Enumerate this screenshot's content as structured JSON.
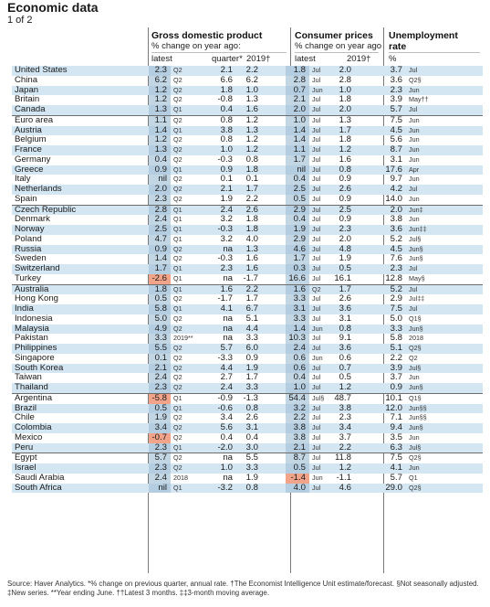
{
  "title": "Economic data",
  "subtitle": "1 of 2",
  "headers": {
    "gdp": {
      "title": "Gross domestic product",
      "sub": "% change on year ago:",
      "latest": "latest",
      "quarter": "quarter*",
      "forecast": "2019†"
    },
    "cpi": {
      "title": "Consumer prices",
      "sub": "% change on year ago",
      "latest": "latest",
      "forecast": "2019†"
    },
    "unemp": {
      "title": "Unemployment",
      "title2": "rate",
      "unit": "%"
    }
  },
  "rows": [
    {
      "country": "United States",
      "gdp": "2.3",
      "gq": "Q2",
      "qtr": "2.1",
      "gf": "2.2",
      "cpi": "1.8",
      "cq": "Jul",
      "cf": "2.0",
      "un": "3.7",
      "uq": "Jul"
    },
    {
      "country": "China",
      "gdp": "6.2",
      "gq": "Q2",
      "qtr": "6.6",
      "gf": "6.2",
      "cpi": "2.8",
      "cq": "Jul",
      "cf": "2.8",
      "un": "3.6",
      "uq": "Q2§"
    },
    {
      "country": "Japan",
      "gdp": "1.2",
      "gq": "Q2",
      "qtr": "1.8",
      "gf": "1.0",
      "cpi": "0.7",
      "cq": "Jun",
      "cf": "1.0",
      "un": "2.3",
      "uq": "Jun"
    },
    {
      "country": "Britain",
      "gdp": "1.2",
      "gq": "Q2",
      "qtr": "-0.8",
      "gf": "1.3",
      "cpi": "2.1",
      "cq": "Jul",
      "cf": "1.8",
      "un": "3.9",
      "uq": "May††"
    },
    {
      "country": "Canada",
      "gdp": "1.3",
      "gq": "Q1",
      "qtr": "0.4",
      "gf": "1.6",
      "cpi": "2.0",
      "cq": "Jul",
      "cf": "2.0",
      "un": "5.7",
      "uq": "Jul"
    },
    {
      "country": "Euro area",
      "gdp": "1.1",
      "gq": "Q2",
      "qtr": "0.8",
      "gf": "1.2",
      "cpi": "1.0",
      "cq": "Jul",
      "cf": "1.3",
      "un": "7.5",
      "uq": "Jun"
    },
    {
      "country": "Austria",
      "gdp": "1.4",
      "gq": "Q1",
      "qtr": "3.8",
      "gf": "1.3",
      "cpi": "1.4",
      "cq": "Jul",
      "cf": "1.7",
      "un": "4.5",
      "uq": "Jun"
    },
    {
      "country": "Belgium",
      "gdp": "1.2",
      "gq": "Q2",
      "qtr": "0.8",
      "gf": "1.2",
      "cpi": "1.4",
      "cq": "Jul",
      "cf": "1.8",
      "un": "5.6",
      "uq": "Jun"
    },
    {
      "country": "France",
      "gdp": "1.3",
      "gq": "Q2",
      "qtr": "1.0",
      "gf": "1.2",
      "cpi": "1.1",
      "cq": "Jul",
      "cf": "1.2",
      "un": "8.7",
      "uq": "Jun"
    },
    {
      "country": "Germany",
      "gdp": "0.4",
      "gq": "Q2",
      "qtr": "-0.3",
      "gf": "0.8",
      "cpi": "1.7",
      "cq": "Jul",
      "cf": "1.6",
      "un": "3.1",
      "uq": "Jun"
    },
    {
      "country": "Greece",
      "gdp": "0.9",
      "gq": "Q1",
      "qtr": "0.9",
      "gf": "1.8",
      "cpi": "nil",
      "cq": "Jul",
      "cf": "0.8",
      "un": "17.6",
      "uq": "Apr"
    },
    {
      "country": "Italy",
      "gdp": "nil",
      "gq": "Q2",
      "qtr": "0.1",
      "gf": "0.1",
      "cpi": "0.4",
      "cq": "Jul",
      "cf": "0.9",
      "un": "9.7",
      "uq": "Jun"
    },
    {
      "country": "Netherlands",
      "gdp": "2.0",
      "gq": "Q2",
      "qtr": "2.1",
      "gf": "1.7",
      "cpi": "2.5",
      "cq": "Jul",
      "cf": "2.6",
      "un": "4.2",
      "uq": "Jul"
    },
    {
      "country": "Spain",
      "gdp": "2.3",
      "gq": "Q2",
      "qtr": "1.9",
      "gf": "2.2",
      "cpi": "0.5",
      "cq": "Jul",
      "cf": "0.9",
      "un": "14.0",
      "uq": "Jun"
    },
    {
      "country": "Czech Republic",
      "gdp": "2.8",
      "gq": "Q1",
      "qtr": "2.4",
      "gf": "2.6",
      "cpi": "2.9",
      "cq": "Jul",
      "cf": "2.5",
      "un": "2.0",
      "uq": "Jun‡"
    },
    {
      "country": "Denmark",
      "gdp": "2.4",
      "gq": "Q1",
      "qtr": "3.2",
      "gf": "1.8",
      "cpi": "0.4",
      "cq": "Jul",
      "cf": "0.9",
      "un": "3.8",
      "uq": "Jun"
    },
    {
      "country": "Norway",
      "gdp": "2.5",
      "gq": "Q1",
      "qtr": "-0.3",
      "gf": "1.8",
      "cpi": "1.9",
      "cq": "Jul",
      "cf": "2.3",
      "un": "3.6",
      "uq": "Jun‡‡"
    },
    {
      "country": "Poland",
      "gdp": "4.7",
      "gq": "Q1",
      "qtr": "3.2",
      "gf": "4.0",
      "cpi": "2.9",
      "cq": "Jul",
      "cf": "2.0",
      "un": "5.2",
      "uq": "Jul§"
    },
    {
      "country": "Russia",
      "gdp": "0.9",
      "gq": "Q2",
      "qtr": "na",
      "gf": "1.3",
      "cpi": "4.6",
      "cq": "Jul",
      "cf": "4.8",
      "un": "4.5",
      "uq": "Jun§"
    },
    {
      "country": "Sweden",
      "gdp": "1.4",
      "gq": "Q2",
      "qtr": "-0.3",
      "gf": "1.6",
      "cpi": "1.7",
      "cq": "Jul",
      "cf": "1.9",
      "un": "7.6",
      "uq": "Jun§"
    },
    {
      "country": "Switzerland",
      "gdp": "1.7",
      "gq": "Q1",
      "qtr": "2.3",
      "gf": "1.6",
      "cpi": "0.3",
      "cq": "Jul",
      "cf": "0.5",
      "un": "2.3",
      "uq": "Jul"
    },
    {
      "country": "Turkey",
      "gdp": "-2.6",
      "gq": "Q1",
      "qtr": "na",
      "gf": "-1.7",
      "cpi": "16.6",
      "cq": "Jul",
      "cf": "16.1",
      "un": "12.8",
      "uq": "May§"
    },
    {
      "country": "Australia",
      "gdp": "1.8",
      "gq": "Q1",
      "qtr": "1.6",
      "gf": "2.2",
      "cpi": "1.6",
      "cq": "Q2",
      "cf": "1.7",
      "un": "5.2",
      "uq": "Jul"
    },
    {
      "country": "Hong Kong",
      "gdp": "0.5",
      "gq": "Q2",
      "qtr": "-1.7",
      "gf": "1.7",
      "cpi": "3.3",
      "cq": "Jul",
      "cf": "2.6",
      "un": "2.9",
      "uq": "Jul‡‡"
    },
    {
      "country": "India",
      "gdp": "5.8",
      "gq": "Q1",
      "qtr": "4.1",
      "gf": "6.7",
      "cpi": "3.1",
      "cq": "Jul",
      "cf": "3.6",
      "un": "7.5",
      "uq": "Jul"
    },
    {
      "country": "Indonesia",
      "gdp": "5.0",
      "gq": "Q2",
      "qtr": "na",
      "gf": "5.1",
      "cpi": "3.3",
      "cq": "Jul",
      "cf": "3.1",
      "un": "5.0",
      "uq": "Q1§"
    },
    {
      "country": "Malaysia",
      "gdp": "4.9",
      "gq": "Q2",
      "qtr": "na",
      "gf": "4.4",
      "cpi": "1.4",
      "cq": "Jun",
      "cf": "0.8",
      "un": "3.3",
      "uq": "Jun§"
    },
    {
      "country": "Pakistan",
      "gdp": "3.3",
      "gq": "2019**",
      "qtr": "na",
      "gf": "3.3",
      "cpi": "10.3",
      "cq": "Jul",
      "cf": "9.1",
      "un": "5.8",
      "uq": "2018"
    },
    {
      "country": "Philippines",
      "gdp": "5.5",
      "gq": "Q2",
      "qtr": "5.7",
      "gf": "6.0",
      "cpi": "2.4",
      "cq": "Jul",
      "cf": "3.6",
      "un": "5.1",
      "uq": "Q2§"
    },
    {
      "country": "Singapore",
      "gdp": "0.1",
      "gq": "Q2",
      "qtr": "-3.3",
      "gf": "0.9",
      "cpi": "0.6",
      "cq": "Jun",
      "cf": "0.6",
      "un": "2.2",
      "uq": "Q2"
    },
    {
      "country": "South Korea",
      "gdp": "2.1",
      "gq": "Q2",
      "qtr": "4.4",
      "gf": "1.9",
      "cpi": "0.6",
      "cq": "Jul",
      "cf": "0.7",
      "un": "3.9",
      "uq": "Jul§"
    },
    {
      "country": "Taiwan",
      "gdp": "2.4",
      "gq": "Q2",
      "qtr": "2.7",
      "gf": "1.7",
      "cpi": "0.4",
      "cq": "Jul",
      "cf": "0.5",
      "un": "3.7",
      "uq": "Jun"
    },
    {
      "country": "Thailand",
      "gdp": "2.3",
      "gq": "Q2",
      "qtr": "2.4",
      "gf": "3.3",
      "cpi": "1.0",
      "cq": "Jul",
      "cf": "1.2",
      "un": "0.9",
      "uq": "Jun§"
    },
    {
      "country": "Argentina",
      "gdp": "-5.8",
      "gq": "Q1",
      "qtr": "-0.9",
      "gf": "-1.3",
      "cpi": "54.4",
      "cq": "Jul§",
      "cf": "48.7",
      "un": "10.1",
      "uq": "Q1§"
    },
    {
      "country": "Brazil",
      "gdp": "0.5",
      "gq": "Q1",
      "qtr": "-0.6",
      "gf": "0.8",
      "cpi": "3.2",
      "cq": "Jul",
      "cf": "3.8",
      "un": "12.0",
      "uq": "Jun§§"
    },
    {
      "country": "Chile",
      "gdp": "1.9",
      "gq": "Q2",
      "qtr": "3.4",
      "gf": "2.6",
      "cpi": "2.2",
      "cq": "Jul",
      "cf": "2.3",
      "un": "7.1",
      "uq": "Jun§§"
    },
    {
      "country": "Colombia",
      "gdp": "3.4",
      "gq": "Q2",
      "qtr": "5.6",
      "gf": "3.1",
      "cpi": "3.8",
      "cq": "Jul",
      "cf": "3.4",
      "un": "9.4",
      "uq": "Jun§"
    },
    {
      "country": "Mexico",
      "gdp": "-0.7",
      "gq": "Q2",
      "qtr": "0.4",
      "gf": "0.4",
      "cpi": "3.8",
      "cq": "Jul",
      "cf": "3.7",
      "un": "3.5",
      "uq": "Jun"
    },
    {
      "country": "Peru",
      "gdp": "2.3",
      "gq": "Q1",
      "qtr": "-2.0",
      "gf": "3.0",
      "cpi": "2.1",
      "cq": "Jul",
      "cf": "2.2",
      "un": "6.3",
      "uq": "Jul§"
    },
    {
      "country": "Egypt",
      "gdp": "5.7",
      "gq": "Q2",
      "qtr": "na",
      "gf": "5.5",
      "cpi": "8.7",
      "cq": "Jul",
      "cf": "11.8",
      "un": "7.5",
      "uq": "Q2§"
    },
    {
      "country": "Israel",
      "gdp": "2.3",
      "gq": "Q2",
      "qtr": "1.0",
      "gf": "3.3",
      "cpi": "0.5",
      "cq": "Jul",
      "cf": "1.2",
      "un": "4.1",
      "uq": "Jun"
    },
    {
      "country": "Saudi Arabia",
      "gdp": "2.4",
      "gq": "2018",
      "qtr": "na",
      "gf": "1.9",
      "cpi": "-1.4",
      "cq": "Jun",
      "cf": "-1.1",
      "un": "5.7",
      "uq": "Q1"
    },
    {
      "country": "South Africa",
      "gdp": "nil",
      "gq": "Q1",
      "qtr": "-3.2",
      "gf": "0.8",
      "cpi": "4.0",
      "cq": "Jul",
      "cf": "4.6",
      "un": "29.0",
      "uq": "Q2§"
    }
  ],
  "source": "Source: Haver Analytics. *% change on previous quarter, annual rate. †The Economist Intelligence Unit estimate/forecast. §Not seasonally adjusted. ‡New series. **Year ending June. ††Latest 3 months. ‡‡3-month moving average."
}
